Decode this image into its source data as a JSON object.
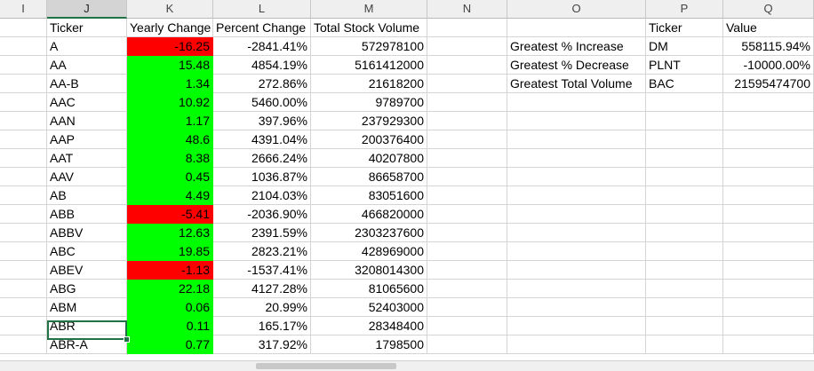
{
  "columns": [
    {
      "letter": "I"
    },
    {
      "letter": "J"
    },
    {
      "letter": "K"
    },
    {
      "letter": "L"
    },
    {
      "letter": "M"
    },
    {
      "letter": "N"
    },
    {
      "letter": "O"
    },
    {
      "letter": "P"
    },
    {
      "letter": "Q"
    }
  ],
  "selected_column": "J",
  "headers": {
    "ticker": "Ticker",
    "yearly_change": "Yearly Change",
    "percent_change": "Percent Change",
    "total_volume": "Total Stock Volume"
  },
  "rows": [
    {
      "ticker": "A",
      "change": "-16.25",
      "pct": "-2841.41%",
      "volume": "572978100",
      "status": "neg"
    },
    {
      "ticker": "AA",
      "change": "15.48",
      "pct": "4854.19%",
      "volume": "5161412000",
      "status": "pos"
    },
    {
      "ticker": "AA-B",
      "change": "1.34",
      "pct": "272.86%",
      "volume": "21618200",
      "status": "pos"
    },
    {
      "ticker": "AAC",
      "change": "10.92",
      "pct": "5460.00%",
      "volume": "9789700",
      "status": "pos"
    },
    {
      "ticker": "AAN",
      "change": "1.17",
      "pct": "397.96%",
      "volume": "237929300",
      "status": "pos"
    },
    {
      "ticker": "AAP",
      "change": "48.6",
      "pct": "4391.04%",
      "volume": "200376400",
      "status": "pos"
    },
    {
      "ticker": "AAT",
      "change": "8.38",
      "pct": "2666.24%",
      "volume": "40207800",
      "status": "pos"
    },
    {
      "ticker": "AAV",
      "change": "0.45",
      "pct": "1036.87%",
      "volume": "86658700",
      "status": "pos"
    },
    {
      "ticker": "AB",
      "change": "4.49",
      "pct": "2104.03%",
      "volume": "83051600",
      "status": "pos"
    },
    {
      "ticker": "ABB",
      "change": "-5.41",
      "pct": "-2036.90%",
      "volume": "466820000",
      "status": "neg"
    },
    {
      "ticker": "ABBV",
      "change": "12.63",
      "pct": "2391.59%",
      "volume": "2303237600",
      "status": "pos"
    },
    {
      "ticker": "ABC",
      "change": "19.85",
      "pct": "2823.21%",
      "volume": "428969000",
      "status": "pos"
    },
    {
      "ticker": "ABEV",
      "change": "-1.13",
      "pct": "-1537.41%",
      "volume": "3208014300",
      "status": "neg"
    },
    {
      "ticker": "ABG",
      "change": "22.18",
      "pct": "4127.28%",
      "volume": "81065600",
      "status": "pos"
    },
    {
      "ticker": "ABM",
      "change": "0.06",
      "pct": "20.99%",
      "volume": "52403000",
      "status": "pos"
    },
    {
      "ticker": "ABR",
      "change": "0.11",
      "pct": "165.17%",
      "volume": "28348400",
      "status": "pos"
    },
    {
      "ticker": "ABR-A",
      "change": "0.77",
      "pct": "317.92%",
      "volume": "1798500",
      "status": "pos"
    }
  ],
  "summary": {
    "header_ticker": "Ticker",
    "header_value": "Value",
    "items": [
      {
        "label": "Greatest % Increase",
        "ticker": "DM",
        "value": "558115.94%"
      },
      {
        "label": "Greatest % Decrease",
        "ticker": "PLNT",
        "value": "-10000.00%"
      },
      {
        "label": "Greatest Total Volume",
        "ticker": "BAC",
        "value": "21595474700"
      }
    ]
  },
  "colors": {
    "positive": "#00ff00",
    "negative": "#ff0000",
    "selection": "#217346"
  }
}
